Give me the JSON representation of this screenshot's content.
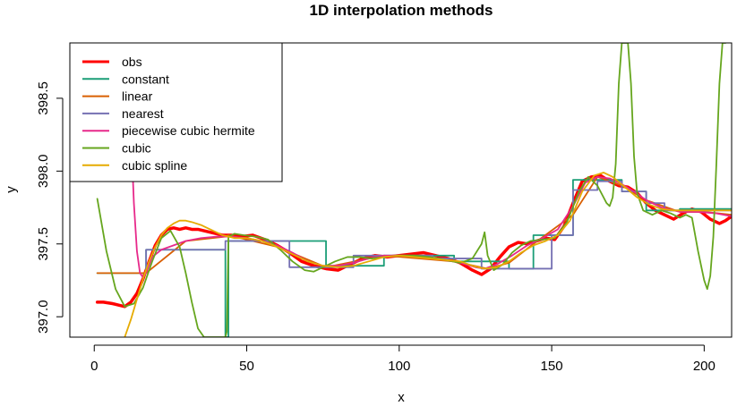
{
  "chart_data": {
    "type": "line",
    "title": "1D interpolation methods",
    "xlabel": "x",
    "ylabel": "y",
    "xlim": [
      -8,
      209
    ],
    "ylim": [
      396.86,
      398.88
    ],
    "xticks": [
      0,
      50,
      100,
      150,
      200
    ],
    "yticks": [
      397.0,
      397.5,
      398.0,
      398.5
    ],
    "xtick_labels": [
      "0",
      "50",
      "100",
      "150",
      "200"
    ],
    "ytick_labels": [
      "397.0",
      "397.5",
      "398.0",
      "398.5"
    ],
    "grid": false,
    "legend_position": "top-left",
    "series": [
      {
        "name": "obs",
        "color": "#FF0000",
        "width": 3.5,
        "x": [
          1,
          3,
          6,
          8,
          10,
          12,
          14,
          16,
          18,
          20,
          22,
          24,
          26,
          28,
          30,
          32,
          34,
          36,
          38,
          40,
          42,
          45,
          48,
          52,
          56,
          60,
          64,
          68,
          72,
          76,
          80,
          84,
          88,
          92,
          96,
          100,
          104,
          108,
          112,
          116,
          120,
          124,
          127,
          130,
          133,
          136,
          139,
          142,
          145,
          148,
          151,
          154,
          157,
          160,
          163,
          166,
          169,
          172,
          175,
          178,
          181,
          184,
          187,
          190,
          193,
          196,
          199,
          202,
          205,
          207,
          209
        ],
        "y": [
          397.1,
          397.1,
          397.09,
          397.08,
          397.07,
          397.1,
          397.16,
          397.26,
          397.38,
          397.49,
          397.56,
          397.6,
          397.61,
          397.6,
          397.61,
          397.6,
          397.6,
          397.59,
          397.58,
          397.57,
          397.56,
          397.56,
          397.55,
          397.56,
          397.53,
          397.49,
          397.44,
          397.38,
          397.35,
          397.33,
          397.32,
          397.36,
          397.4,
          397.42,
          397.41,
          397.42,
          397.43,
          397.44,
          397.42,
          397.4,
          397.37,
          397.32,
          397.29,
          397.33,
          397.41,
          397.48,
          397.51,
          397.5,
          397.52,
          397.54,
          397.53,
          397.62,
          397.78,
          397.93,
          397.96,
          397.97,
          397.93,
          397.9,
          397.89,
          397.85,
          397.78,
          397.73,
          397.7,
          397.67,
          397.71,
          397.74,
          397.72,
          397.67,
          397.64,
          397.66,
          397.69
        ]
      },
      {
        "name": "constant",
        "color": "#1B9E77",
        "width": 1.8,
        "x": [
          1,
          17,
          17,
          43,
          43,
          44,
          44,
          76,
          76,
          95,
          95,
          118,
          118,
          136,
          136,
          144,
          144,
          157,
          157,
          173,
          173,
          181,
          181,
          192,
          192,
          209
        ],
        "y": [
          397.3,
          397.3,
          397.46,
          397.46,
          396.86,
          396.86,
          397.52,
          397.52,
          397.35,
          397.35,
          397.42,
          397.42,
          397.38,
          397.38,
          397.33,
          397.33,
          397.56,
          397.56,
          397.94,
          397.94,
          397.86,
          397.86,
          397.73,
          397.73,
          397.74,
          397.74
        ]
      },
      {
        "name": "linear",
        "color": "#D95F02",
        "width": 1.8,
        "x": [
          1,
          12,
          17,
          30,
          43,
          44,
          60,
          76,
          95,
          118,
          129,
          136,
          144,
          157,
          165,
          173,
          181,
          192,
          200,
          209
        ],
        "y": [
          397.3,
          397.3,
          397.3,
          397.52,
          397.55,
          397.56,
          397.48,
          397.34,
          397.42,
          397.38,
          397.33,
          397.37,
          397.5,
          397.7,
          397.96,
          397.9,
          397.8,
          397.72,
          397.72,
          397.7
        ]
      },
      {
        "name": "nearest",
        "color": "#7570B3",
        "width": 1.8,
        "x": [
          17,
          17,
          30,
          30,
          43,
          43,
          64,
          64,
          85,
          85,
          111,
          111,
          127,
          127,
          150,
          150,
          157,
          157,
          165,
          165,
          173,
          173,
          181,
          181,
          187,
          187,
          209
        ],
        "y": [
          397.3,
          397.46,
          397.46,
          397.46,
          397.46,
          397.52,
          397.52,
          397.34,
          397.34,
          397.42,
          397.42,
          397.4,
          397.4,
          397.33,
          397.33,
          397.56,
          397.56,
          397.87,
          397.87,
          397.93,
          397.93,
          397.86,
          397.86,
          397.78,
          397.78,
          397.73,
          397.73
        ]
      },
      {
        "name": "piecewise cubic hermite",
        "color": "#E7298A",
        "width": 1.8,
        "x": [
          11,
          12,
          13,
          14,
          15,
          16,
          17,
          19,
          22,
          26,
          30,
          35,
          40,
          45,
          50,
          55,
          60,
          65,
          70,
          75,
          80,
          85,
          90,
          95,
          100,
          105,
          110,
          115,
          120,
          125,
          128,
          132,
          137,
          142,
          147,
          152,
          157,
          161,
          165,
          169,
          173,
          177,
          181,
          186,
          192,
          198,
          204,
          209
        ],
        "y": [
          398.86,
          398.3,
          397.78,
          397.45,
          397.3,
          397.27,
          397.3,
          397.41,
          397.46,
          397.49,
          397.52,
          397.54,
          397.55,
          397.55,
          397.54,
          397.52,
          397.49,
          397.44,
          397.38,
          397.35,
          397.35,
          397.37,
          397.4,
          397.42,
          397.42,
          397.41,
          397.4,
          397.39,
          397.37,
          397.34,
          397.33,
          397.36,
          397.42,
          397.49,
          397.54,
          397.6,
          397.76,
          397.92,
          397.96,
          397.95,
          397.91,
          397.86,
          397.8,
          397.75,
          397.72,
          397.72,
          397.71,
          397.69
        ]
      },
      {
        "name": "cubic",
        "color": "#66A61E",
        "width": 1.8,
        "x": [
          1,
          4,
          7,
          10,
          13,
          16,
          19,
          22,
          25,
          28,
          30,
          32,
          34,
          36,
          38,
          40,
          42,
          43,
          43.5,
          44,
          46,
          49,
          53,
          57,
          61,
          65,
          69,
          72,
          75,
          79,
          83,
          87,
          91,
          95,
          100,
          105,
          110,
          115,
          120,
          124,
          127,
          128,
          129,
          131,
          134,
          137,
          140,
          143,
          147,
          151,
          155,
          159,
          162,
          165,
          168,
          169,
          170,
          171,
          172,
          173,
          174,
          175,
          176,
          177,
          178,
          180,
          183,
          186,
          189,
          192,
          194,
          196,
          198,
          200,
          201,
          202,
          203,
          204,
          205,
          206,
          207
        ],
        "y": [
          397.81,
          397.45,
          397.19,
          397.07,
          397.09,
          397.2,
          397.38,
          397.54,
          397.59,
          397.48,
          397.3,
          397.1,
          396.92,
          396.86,
          396.86,
          396.86,
          396.86,
          396.86,
          396.9,
          397.55,
          397.57,
          397.56,
          397.55,
          397.53,
          397.46,
          397.38,
          397.32,
          397.31,
          397.34,
          397.38,
          397.41,
          397.41,
          397.4,
          397.41,
          397.42,
          397.42,
          397.41,
          397.39,
          397.37,
          397.4,
          397.5,
          397.58,
          397.42,
          397.32,
          397.36,
          397.44,
          397.49,
          397.52,
          397.53,
          397.54,
          397.65,
          397.86,
          397.96,
          397.9,
          397.78,
          397.76,
          397.82,
          398.05,
          398.6,
          398.88,
          398.88,
          398.88,
          398.6,
          398.1,
          397.85,
          397.73,
          397.7,
          397.73,
          397.71,
          397.68,
          397.7,
          397.68,
          397.45,
          397.25,
          397.19,
          397.28,
          397.55,
          398.05,
          398.6,
          398.88,
          398.88
        ]
      },
      {
        "name": "cubic spline",
        "color": "#E6AB02",
        "width": 1.8,
        "x": [
          10,
          12,
          14,
          16,
          18,
          20,
          22,
          24,
          26,
          28,
          30,
          32,
          35,
          38,
          42,
          46,
          50,
          55,
          60,
          65,
          70,
          75,
          80,
          85,
          90,
          95,
          100,
          105,
          110,
          115,
          120,
          124,
          128,
          132,
          136,
          140,
          144,
          148,
          152,
          156,
          160,
          164,
          167,
          170,
          174,
          178,
          182,
          186,
          190,
          194,
          198,
          202,
          206,
          209
        ],
        "y": [
          396.86,
          396.98,
          397.12,
          397.26,
          397.38,
          397.48,
          397.56,
          397.61,
          397.64,
          397.66,
          397.66,
          397.65,
          397.63,
          397.6,
          397.56,
          397.54,
          397.54,
          397.52,
          397.48,
          397.43,
          397.38,
          397.35,
          397.34,
          397.35,
          397.38,
          397.41,
          397.42,
          397.41,
          397.4,
          397.39,
          397.38,
          397.35,
          397.33,
          397.34,
          397.38,
          397.44,
          397.49,
          397.52,
          397.56,
          397.66,
          397.86,
          397.97,
          397.99,
          397.96,
          397.89,
          397.82,
          397.77,
          397.74,
          397.73,
          397.73,
          397.73,
          397.73,
          397.73,
          397.73
        ]
      }
    ]
  }
}
